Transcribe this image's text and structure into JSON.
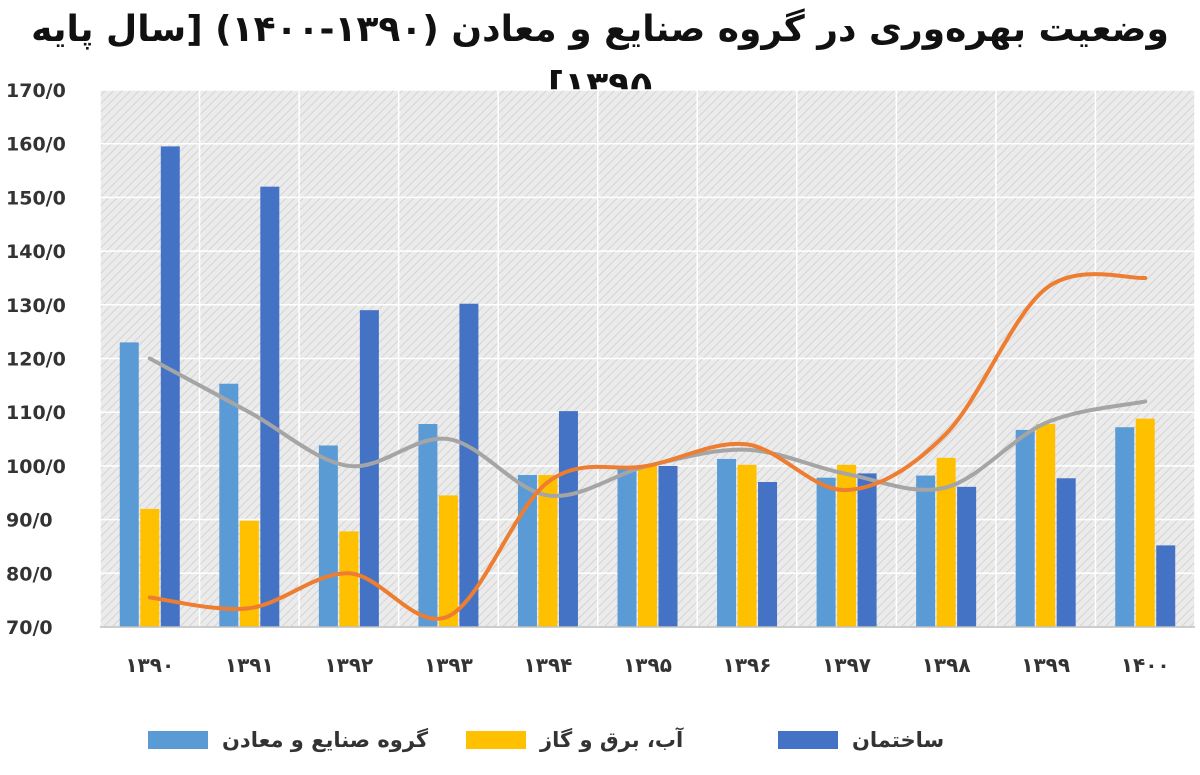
{
  "chart_data": {
    "type": "bar",
    "title": "وضعیت بهره‌وری در گروه صنایع و معادن (۱۳۹۰-۱۴۰۰) [سال پایه ۱۳۹۵]",
    "categories": [
      "۱۳۹۰",
      "۱۳۹۱",
      "۱۳۹۲",
      "۱۳۹۳",
      "۱۳۹۴",
      "۱۳۹۵",
      "۱۳۹۶",
      "۱۳۹۷",
      "۱۳۹۸",
      "۱۳۹۹",
      "۱۴۰۰"
    ],
    "y_ticks": [
      "70/0",
      "80/0",
      "90/0",
      "100/0",
      "110/0",
      "120/0",
      "130/0",
      "140/0",
      "150/0",
      "160/0",
      "170/0"
    ],
    "ylim": [
      70,
      170
    ],
    "grid": true,
    "legend_position": "bottom",
    "series": [
      {
        "name": "گروه صنایع و معادن",
        "type": "bar",
        "color": "#5B9BD5",
        "values": [
          123,
          115.3,
          103.8,
          107.8,
          98.3,
          100,
          101.3,
          97.8,
          98.2,
          106.7,
          107.2
        ]
      },
      {
        "name": "آب، برق و گاز",
        "type": "bar",
        "color": "#FFC000",
        "values": [
          92,
          89.8,
          87.8,
          94.5,
          98.3,
          100,
          100.2,
          100.2,
          101.5,
          107.8,
          108.8
        ]
      },
      {
        "name": "ساختمان",
        "type": "bar",
        "color": "#4472C4",
        "values": [
          159.5,
          152,
          129,
          130.2,
          110.2,
          100,
          97,
          98.6,
          96.1,
          97.7,
          85.2
        ]
      },
      {
        "type": "line",
        "color": "#A5A5A5",
        "values": [
          120,
          110,
          100,
          105,
          94.5,
          100,
          103,
          98.5,
          96,
          108,
          112
        ]
      },
      {
        "type": "line",
        "color": "#ED7D31",
        "values": [
          75.5,
          73.5,
          80,
          72,
          97,
          100,
          104,
          95.5,
          106,
          133,
          135
        ]
      }
    ]
  }
}
